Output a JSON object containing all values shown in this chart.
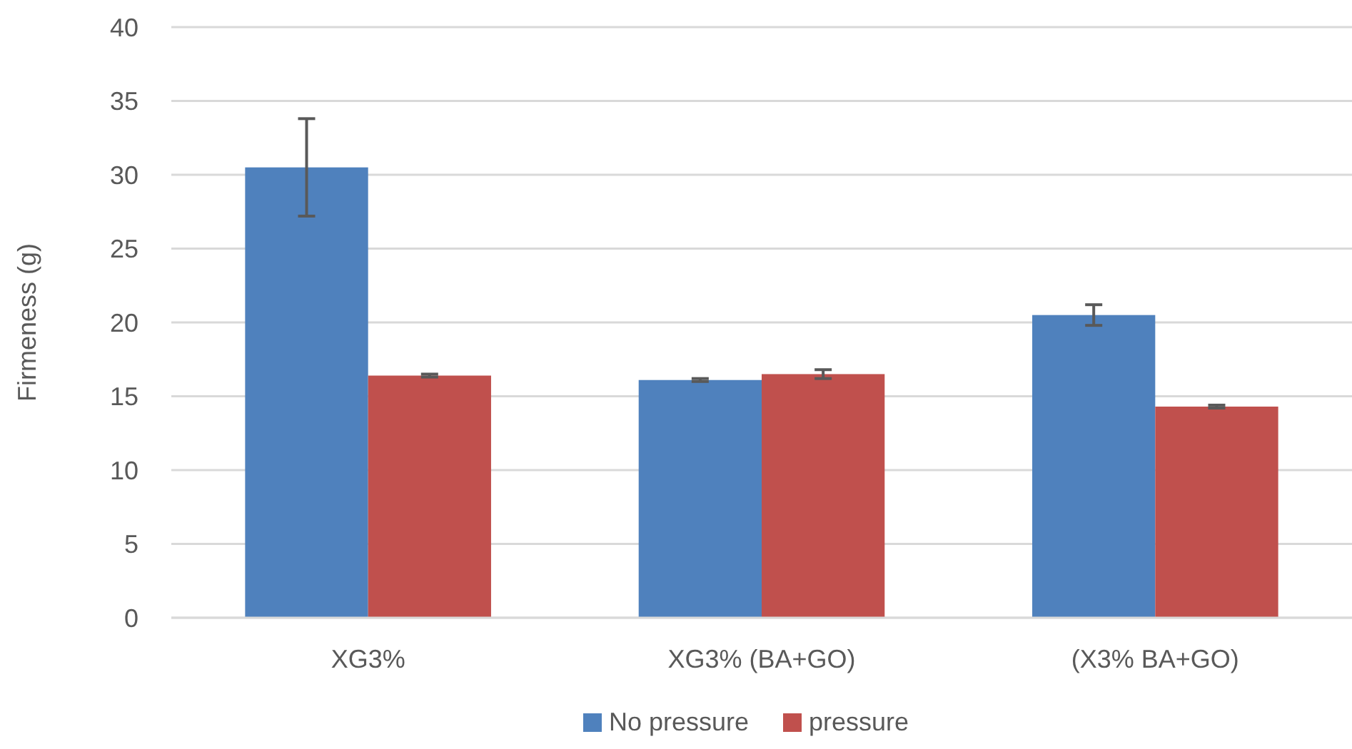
{
  "chart_data": {
    "type": "bar",
    "ylabel": "Firmeness (g)",
    "categories": [
      "XG3%",
      "XG3% (BA+GO)",
      "(X3% BA+GO)"
    ],
    "series": [
      {
        "name": "No pressure",
        "color": "#4f81bd",
        "values": [
          30.5,
          16.1,
          20.5
        ],
        "errors": [
          3.3,
          0.1,
          0.7
        ]
      },
      {
        "name": "pressure",
        "color": "#c0504d",
        "values": [
          16.4,
          16.5,
          14.3
        ],
        "errors": [
          0.1,
          0.3,
          0.1
        ]
      }
    ],
    "ylim": [
      0,
      40
    ],
    "yticks": [
      0,
      5,
      10,
      15,
      20,
      25,
      30,
      35,
      40
    ],
    "grid": "y",
    "legend": "bottom"
  }
}
